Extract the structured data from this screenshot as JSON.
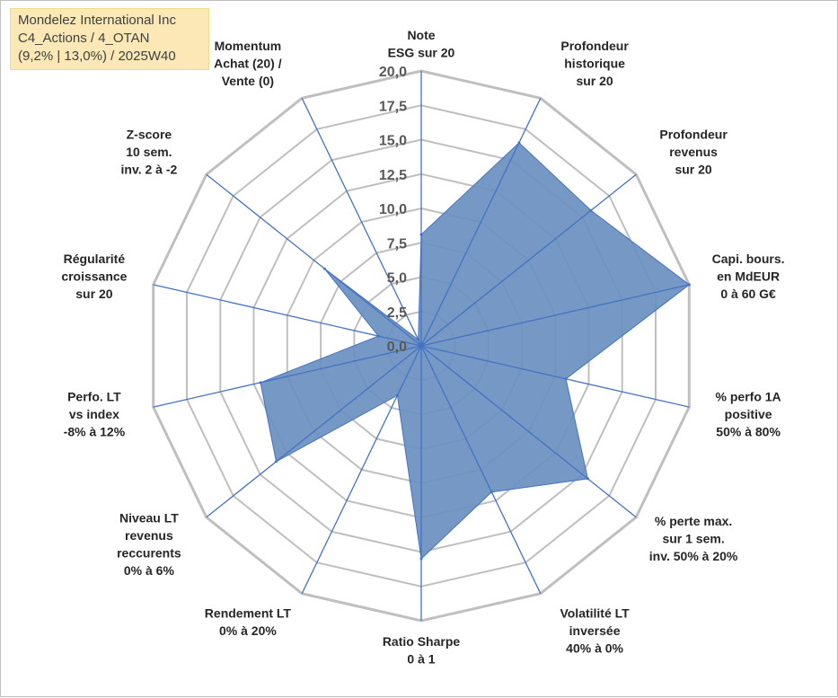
{
  "header": {
    "company": "Mondelez International Inc",
    "portfolio": "C4_Actions / 4_OTAN",
    "stats": "(9,2% | 13,0%) / 2025W40"
  },
  "chart_data": {
    "type": "radar",
    "rmax": 20,
    "ticks": [
      "0,0",
      "2,5",
      "5,0",
      "7,5",
      "10,0",
      "12,5",
      "15,0",
      "17,5",
      "20,0"
    ],
    "grid": true,
    "axes": [
      {
        "label": [
          "Note",
          "ESG sur 20"
        ],
        "value": 8.1
      },
      {
        "label": [
          "Profondeur",
          "historique",
          "sur 20"
        ],
        "value": 16.4
      },
      {
        "label": [
          "Profondeur",
          "revenus",
          "sur 20"
        ],
        "value": 15.8
      },
      {
        "label": [
          "Capi. bours.",
          "en MdEUR",
          "0 à 60 G€"
        ],
        "value": 20.0
      },
      {
        "label": [
          "% perfo 1A",
          "positive",
          "50% à 80%"
        ],
        "value": 10.8
      },
      {
        "label": [
          "% perte max.",
          "sur 1 sem.",
          "inv. 50% à 20%"
        ],
        "value": 15.5
      },
      {
        "label": [
          "Volatilité LT",
          "inversée",
          "40% à 0%"
        ],
        "value": 11.8
      },
      {
        "label": [
          "Ratio Sharpe",
          "0 à 1"
        ],
        "value": 15.5
      },
      {
        "label": [
          "Rendement LT",
          "0% à 20%"
        ],
        "value": 4.0
      },
      {
        "label": [
          "Niveau LT",
          "revenus",
          "reccurents",
          "0% à 6%"
        ],
        "value": 13.5
      },
      {
        "label": [
          "Perfo. LT",
          "vs index",
          "-8% à 12%"
        ],
        "value": 12.0
      },
      {
        "label": [
          "Régularité",
          "croissance",
          "sur 20"
        ],
        "value": 3.2
      },
      {
        "label": [
          "Z-score",
          "10 sem.",
          "inv. 2 à -2"
        ],
        "value": 9.0
      },
      {
        "label": [
          "Momentum",
          "Achat (20) /",
          "Vente (0)"
        ],
        "value": 0.5
      }
    ],
    "fill_color": "#6a8fbf",
    "fill_opacity": 0.92,
    "series_line_color": "#4472c4",
    "grid_color": "#bfbfbf",
    "spoke_color": "#4472c4"
  }
}
